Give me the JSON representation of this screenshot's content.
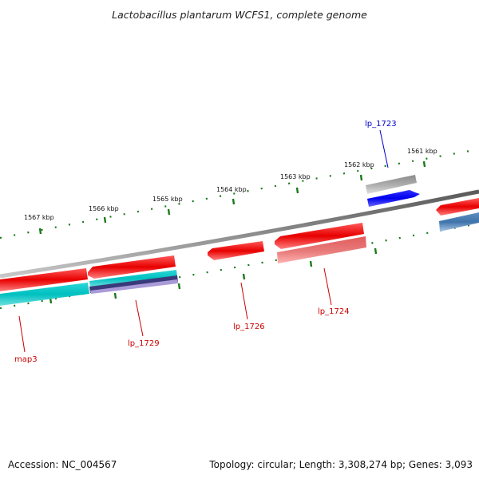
{
  "title": "Lactobacillus plantarum WCFS1, complete genome",
  "footer": {
    "accession": "Accession: NC_004567",
    "summary": "Topology: circular; Length: 3,308,274 bp; Genes: 3,093"
  },
  "colors": {
    "backbone": "#808080",
    "tick": "#1a7a1a",
    "gene_forward": "#ee1111",
    "gene_label": "#cc0000",
    "gene_label_blue": "#0000cc"
  },
  "scale": {
    "unit": "kbp",
    "labels": [
      "1561 kbp",
      "1562 kbp",
      "1563 kbp",
      "1564 kbp",
      "1565 kbp",
      "1566 kbp",
      "1567 kbp"
    ]
  },
  "genes": [
    {
      "name": "lp_1723",
      "color": "#0000cc"
    },
    {
      "name": "lp_1724",
      "color": "#cc0000"
    },
    {
      "name": "lp_1726",
      "color": "#cc0000"
    },
    {
      "name": "lp_1729",
      "color": "#cc0000"
    },
    {
      "name": "map3",
      "color": "#cc0000"
    }
  ]
}
